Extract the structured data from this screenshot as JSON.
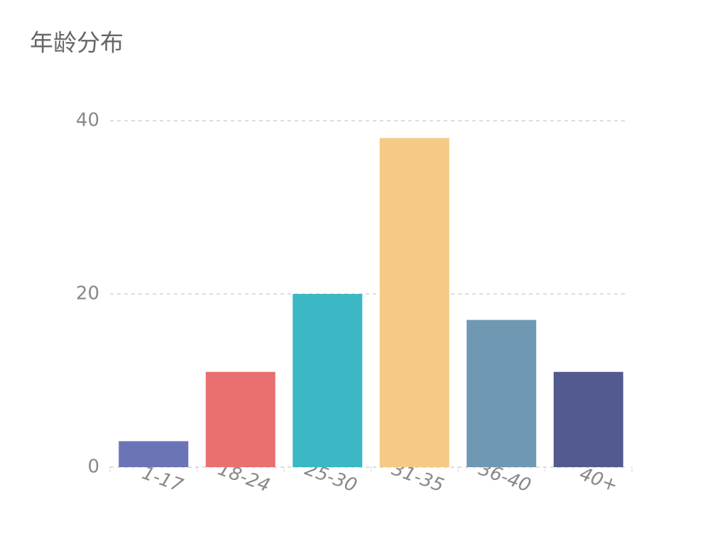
{
  "chart_data": {
    "type": "bar",
    "title": "年龄分布",
    "categories": [
      "1-17",
      "18-24",
      "25-30",
      "31-35",
      "36-40",
      "40+"
    ],
    "values": [
      3,
      11,
      20,
      38,
      17,
      11
    ],
    "colors": [
      "#6c74b8",
      "#e87070",
      "#3cb8c4",
      "#f5c986",
      "#6f98b3",
      "#535b8e"
    ],
    "ylim": [
      0,
      40
    ],
    "yticks": [
      0,
      20,
      40
    ],
    "grid": true
  }
}
